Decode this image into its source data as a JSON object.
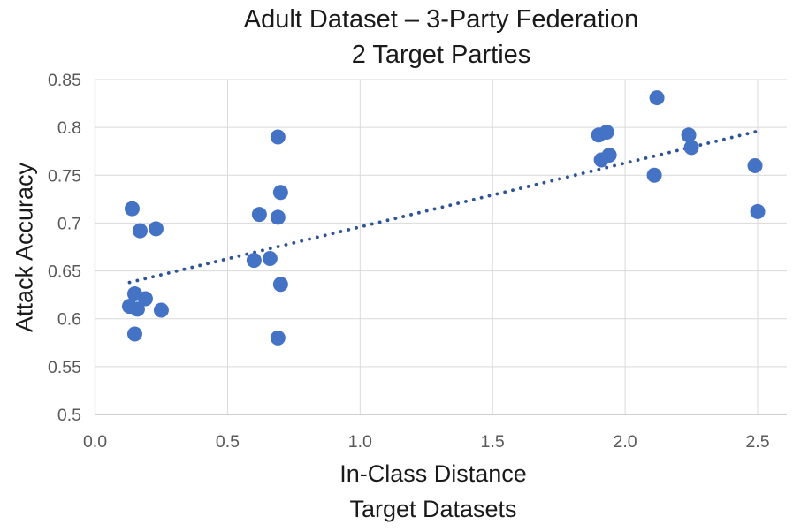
{
  "title": {
    "line1": "Adult Dataset – 3-Party Federation",
    "line2": "2 Target Parties"
  },
  "axes": {
    "x": {
      "title_line1": "In-Class Distance",
      "title_line2": "Target Datasets",
      "ticks": [
        "0.0",
        "0.5",
        "1.0",
        "1.5",
        "2.0",
        "2.5"
      ],
      "tick_values": [
        0,
        0.5,
        1.0,
        1.5,
        2.0,
        2.5
      ]
    },
    "y": {
      "title": "Attack Accuracy",
      "ticks": [
        "0.85",
        "0.8",
        "0.75",
        "0.7",
        "0.65",
        "0.6",
        "0.55",
        "0.5"
      ],
      "tick_values": [
        0.85,
        0.8,
        0.75,
        0.7,
        0.65,
        0.6,
        0.55,
        0.5
      ]
    }
  },
  "colors": {
    "marker": "#4472C4",
    "trendline": "#2E5396",
    "gridline": "#D9D9D9",
    "axis_line": "#BFBFBF",
    "tick_label": "#595959",
    "title_text": "#1A1A1A"
  },
  "chart_data": {
    "type": "scatter",
    "title": "Adult Dataset – 3-Party Federation / 2 Target Parties",
    "xlabel": "In-Class Distance Target Datasets",
    "ylabel": "Attack Accuracy",
    "xlim": [
      0,
      2.61
    ],
    "ylim": [
      0.5,
      0.85
    ],
    "grid": true,
    "legend": "none",
    "series": [
      {
        "name": "attack-accuracy-vs-in-class-distance",
        "marker_color": "#4472C4",
        "marker_radius_px": 8.5,
        "points": [
          [
            0.14,
            0.715
          ],
          [
            0.17,
            0.692
          ],
          [
            0.23,
            0.694
          ],
          [
            0.15,
            0.626
          ],
          [
            0.19,
            0.621
          ],
          [
            0.13,
            0.613
          ],
          [
            0.16,
            0.61
          ],
          [
            0.25,
            0.609
          ],
          [
            0.15,
            0.584
          ],
          [
            0.69,
            0.79
          ],
          [
            0.7,
            0.732
          ],
          [
            0.62,
            0.709
          ],
          [
            0.69,
            0.706
          ],
          [
            0.6,
            0.661
          ],
          [
            0.66,
            0.663
          ],
          [
            0.7,
            0.636
          ],
          [
            0.69,
            0.58
          ],
          [
            1.9,
            0.792
          ],
          [
            1.93,
            0.795
          ],
          [
            1.91,
            0.766
          ],
          [
            1.94,
            0.771
          ],
          [
            2.11,
            0.75
          ],
          [
            2.12,
            0.831
          ],
          [
            2.24,
            0.792
          ],
          [
            2.25,
            0.779
          ],
          [
            2.49,
            0.76
          ],
          [
            2.5,
            0.712
          ]
        ]
      }
    ],
    "trendline": {
      "style": "dotted",
      "color": "#2E5396",
      "start": [
        0.13,
        0.638
      ],
      "end": [
        2.5,
        0.796
      ]
    }
  }
}
